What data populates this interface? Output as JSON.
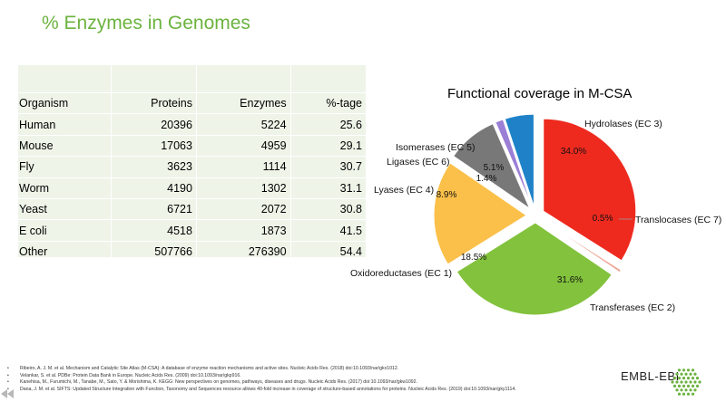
{
  "slide": {
    "title": "% Enzymes in Genomes"
  },
  "table": {
    "headers": [
      "Organism",
      "Proteins",
      "Enzymes",
      "%-tage"
    ],
    "rows": [
      [
        "Human",
        "20396",
        "5224",
        "25.6"
      ],
      [
        "Mouse",
        "17063",
        "4959",
        "29.1"
      ],
      [
        "Fly",
        "3623",
        "1114",
        "30.7"
      ],
      [
        "Worm",
        "4190",
        "1302",
        "31.1"
      ],
      [
        "Yeast",
        "6721",
        "2072",
        "30.8"
      ],
      [
        "E coli",
        "4518",
        "1873",
        "41.5"
      ],
      [
        "Other",
        "507766",
        "276390",
        "54.4"
      ]
    ]
  },
  "chart_data": {
    "type": "pie",
    "title": "Functional coverage in M-CSA",
    "slices": [
      {
        "label": "Hydrolases (EC 3)",
        "value": 34.0,
        "value_label": "34.0%",
        "color": "#ee2a1f"
      },
      {
        "label": "Translocases (EC 7)",
        "value": 0.5,
        "value_label": "0.5%",
        "color": "#f0a99a"
      },
      {
        "label": "Transferases (EC 2)",
        "value": 31.6,
        "value_label": "31.6%",
        "color": "#82c23c"
      },
      {
        "label": "Oxidoreductases (EC 1)",
        "value": 18.5,
        "value_label": "18.5%",
        "color": "#fbc04a"
      },
      {
        "label": "Lyases (EC 4)",
        "value": 8.9,
        "value_label": "8.9%",
        "color": "#787878"
      },
      {
        "label": "Ligases (EC 6)",
        "value": 1.4,
        "value_label": "1.4%",
        "color": "#9b7fd6"
      },
      {
        "label": "Isomerases (EC 5)",
        "value": 5.1,
        "value_label": "5.1%",
        "color": "#1f82c8"
      }
    ],
    "start_angle_deg": 0,
    "direction": "clockwise",
    "exploded": true
  },
  "footnotes": [
    "Ribeiro, A. J. M. et al. Mechanism and Catalytic Site Atlas (M-CSA): A database of enzyme reaction mechanisms and active sites. Nucleic Acids Res. (2018) doi:10.1093/nar/gkx1012.",
    "Velankar, S. et al. PDBe: Protein Data Bank in Europe. Nucleic Acids Res. (2009) doi:10.1093/nar/gkp916.",
    "Kanehisa, M., Furumichi, M., Tanabe, M., Sato, Y. & Morishima, K. KEGG: New perspectives on genomes, pathways, diseases and drugs. Nucleic Acids Res. (2017) doi:10.1093/nar/gkw1092.",
    "Dana, J. M. et al. SIFTS: Updated Structure Integration with Function, Taxonomy and Sequences resource allows 40-fold increase in coverage of structure-based annotations for proteins. Nucleic Acids Res. (2019) doi:10.1093/nar/gky1114."
  ],
  "logo": {
    "text": "EMBL-EBI",
    "icon": "embl-ebi-hex-dots-logo",
    "color": "#6cb33f"
  },
  "player": {
    "icon": "rewind-icon"
  }
}
